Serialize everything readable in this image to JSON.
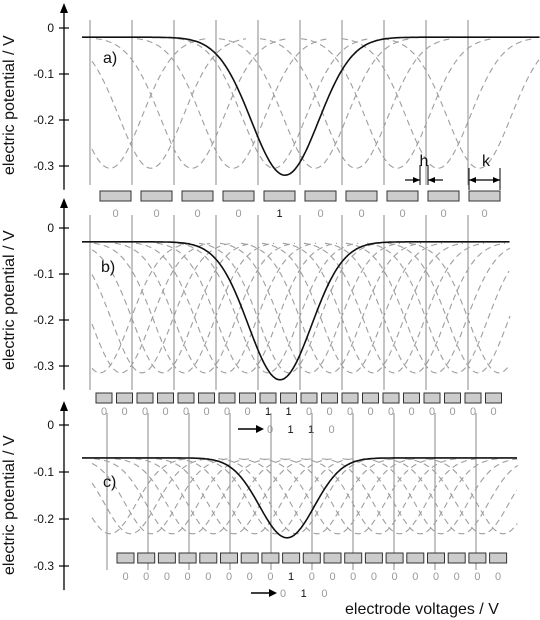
{
  "figure": {
    "ylabel": "electric potential / V",
    "xlabel": "electrode voltages / V",
    "dim_h": "h",
    "dim_k": "k"
  },
  "panels": [
    {
      "id": "a",
      "label": "a)",
      "y_ticks": [
        "0",
        "-0.1",
        "-0.2",
        "-0.3"
      ],
      "electrode_voltages": [
        "0",
        "0",
        "0",
        "0",
        "1",
        "0",
        "0",
        "0",
        "0",
        "0"
      ],
      "potential_min": -0.32,
      "potential_baseline": -0.02
    },
    {
      "id": "b",
      "label": "b)",
      "y_ticks": [
        "0",
        "-0.1",
        "-0.2",
        "-0.3"
      ],
      "electrode_voltages": [
        "0",
        "0",
        "0",
        "0",
        "0",
        "0",
        "0",
        "0",
        "1",
        "1",
        "0",
        "0",
        "0",
        "0",
        "0",
        "0",
        "0",
        "0",
        "0",
        "0"
      ],
      "shift_voltages": [
        "0",
        "1",
        "1",
        "0"
      ],
      "potential_min": -0.33,
      "potential_baseline": -0.03
    },
    {
      "id": "c",
      "label": "c)",
      "y_ticks": [
        "0",
        "-0.1",
        "-0.2",
        "-0.3"
      ],
      "electrode_voltages": [
        "0",
        "0",
        "0",
        "0",
        "0",
        "0",
        "0",
        "0",
        "1",
        "0",
        "0",
        "0",
        "0",
        "0",
        "0",
        "0",
        "0",
        "0",
        "0"
      ],
      "shift_voltages": [
        "0",
        "1",
        "0"
      ],
      "potential_min": -0.24,
      "potential_baseline": -0.07
    }
  ],
  "colors": {
    "curve": "#111111",
    "dashed": "#9e9e9e",
    "grid": "#8a8a8a",
    "electrode_fill": "#cccccc",
    "electrode_stroke": "#333333"
  }
}
